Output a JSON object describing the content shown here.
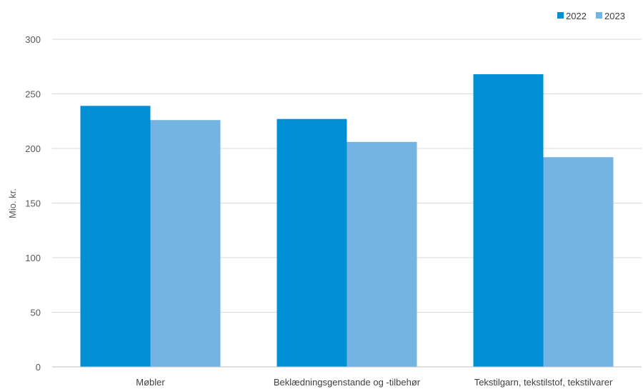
{
  "chart_data": {
    "type": "bar",
    "categories": [
      "Møbler",
      "Beklædningsgenstande og -tilbehør",
      "Tekstilgarn, tekstilstof, tekstilvarer"
    ],
    "series": [
      {
        "name": "2022",
        "values": [
          239,
          227,
          268
        ],
        "color": "#008FD5"
      },
      {
        "name": "2023",
        "values": [
          226,
          206,
          192
        ],
        "color": "#74B4E3"
      }
    ],
    "title": "",
    "xlabel": "",
    "ylabel": "Mio. kr.",
    "ylim": [
      0,
      300
    ],
    "yticks": [
      0,
      50,
      100,
      150,
      200,
      250,
      300
    ],
    "grid": true,
    "legend_position": "top-right"
  }
}
